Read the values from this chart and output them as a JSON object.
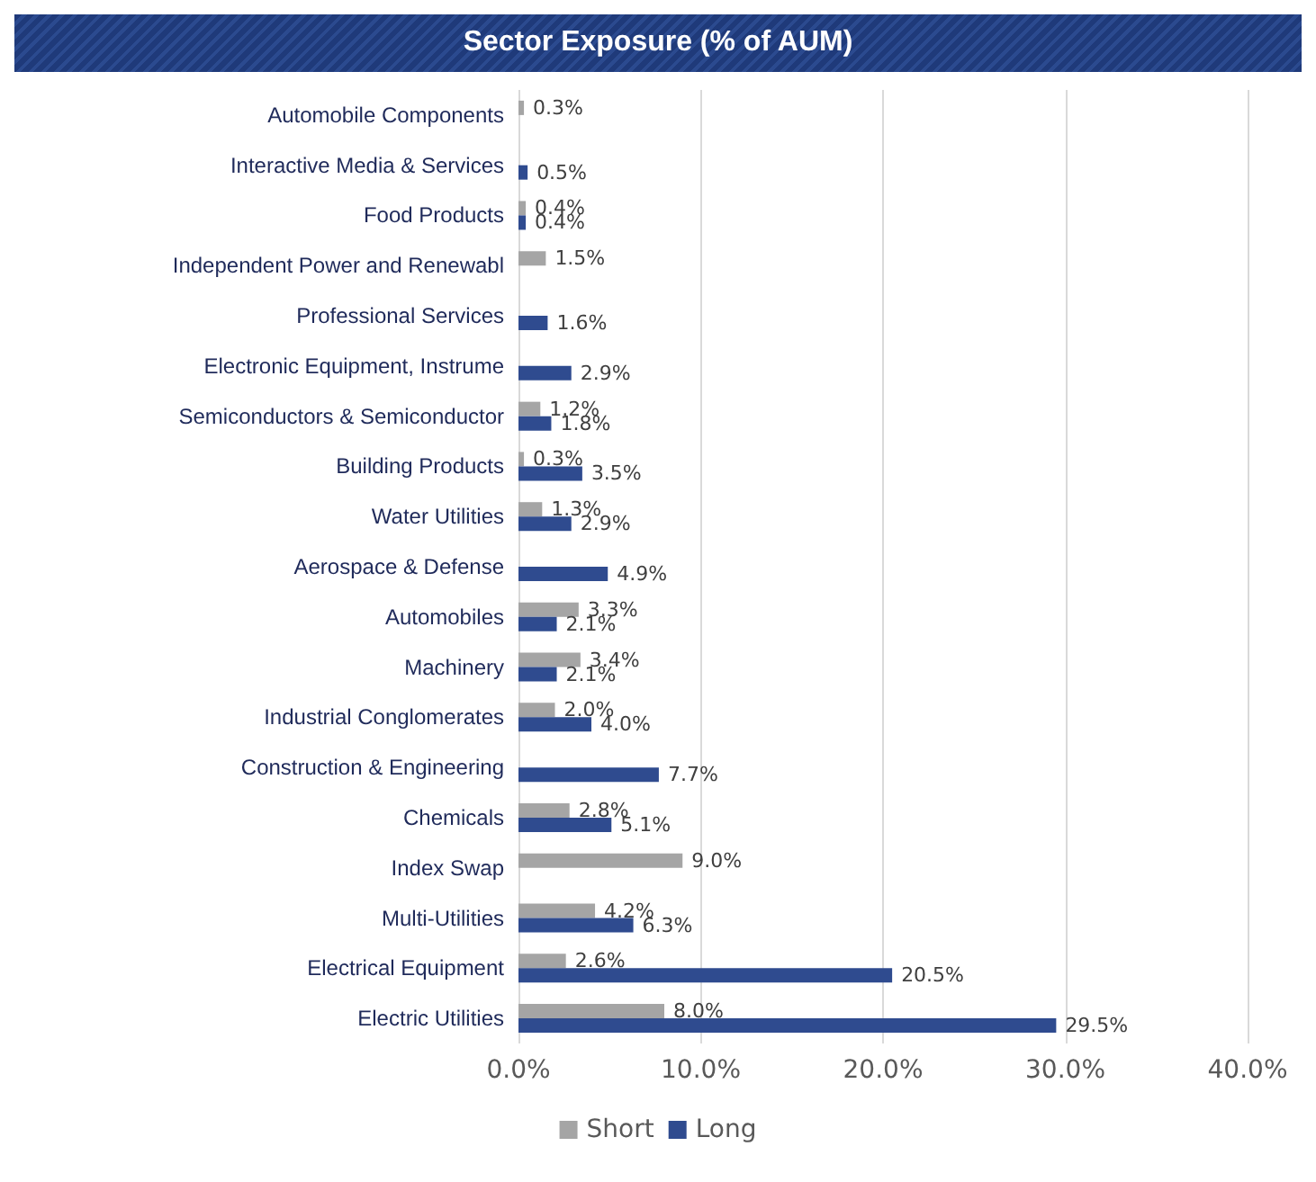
{
  "chart_data": {
    "type": "bar",
    "title": "Sector Exposure (% of AUM)",
    "orientation": "horizontal",
    "categories": [
      "Automobile Components",
      "Interactive Media & Services",
      "Food Products",
      "Independent Power and Renewabl",
      "Professional Services",
      "Electronic Equipment, Instrume",
      "Semiconductors & Semiconductor",
      "Building Products",
      "Water Utilities",
      "Aerospace & Defense",
      "Automobiles",
      "Machinery",
      "Industrial Conglomerates",
      "Construction & Engineering",
      "Chemicals",
      "Index Swap",
      "Multi-Utilities",
      "Electrical Equipment",
      "Electric Utilities"
    ],
    "series": [
      {
        "name": "Short",
        "color": "#a5a5a5",
        "values": [
          0.3,
          null,
          0.4,
          1.5,
          null,
          null,
          1.2,
          0.3,
          1.3,
          null,
          3.3,
          3.4,
          2.0,
          null,
          2.8,
          9.0,
          4.2,
          2.6,
          8.0
        ],
        "value_labels": [
          "0.3%",
          null,
          "0.4%",
          "1.5%",
          null,
          null,
          "1.2%",
          "0.3%",
          "1.3%",
          null,
          "3.3%",
          "3.4%",
          "2.0%",
          null,
          "2.8%",
          "9.0%",
          "4.2%",
          "2.6%",
          "8.0%"
        ]
      },
      {
        "name": "Long",
        "color": "#2f4b8f",
        "values": [
          null,
          0.5,
          0.4,
          null,
          1.6,
          2.9,
          1.8,
          3.5,
          2.9,
          4.9,
          2.1,
          2.1,
          4.0,
          7.7,
          5.1,
          null,
          6.3,
          20.5,
          29.5
        ],
        "value_labels": [
          null,
          "0.5%",
          "0.4%",
          null,
          "1.6%",
          "2.9%",
          "1.8%",
          "3.5%",
          "2.9%",
          "4.9%",
          "2.1%",
          "2.1%",
          "4.0%",
          "7.7%",
          "5.1%",
          null,
          "6.3%",
          "20.5%",
          "29.5%"
        ]
      }
    ],
    "xlim": [
      0,
      40
    ],
    "xticks": [
      {
        "value": 0,
        "label": "0.0%"
      },
      {
        "value": 10,
        "label": "10.0%"
      },
      {
        "value": 20,
        "label": "20.0%"
      },
      {
        "value": 30,
        "label": "30.0%"
      },
      {
        "value": 40,
        "label": "40.0%"
      }
    ],
    "grid": "x",
    "legend": "bottom"
  }
}
